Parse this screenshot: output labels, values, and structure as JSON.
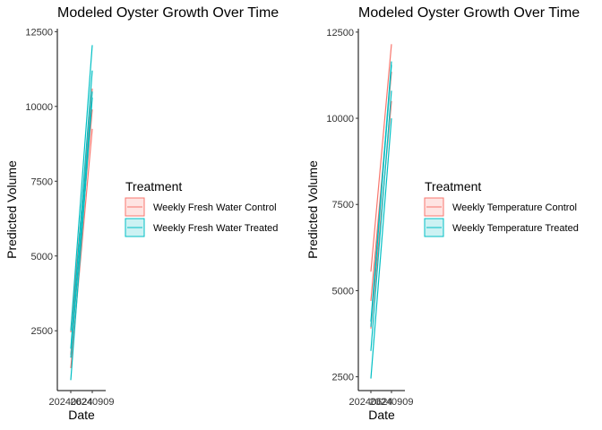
{
  "chart_data": [
    {
      "type": "line",
      "title": "Modeled Oyster Growth Over Time",
      "xlabel": "Date",
      "ylabel": "Predicted Volume",
      "x_tick_labels": [
        "20240624",
        "20240909"
      ],
      "y_ticks": [
        2500,
        5000,
        7500,
        10000,
        12500
      ],
      "ylim": [
        500,
        12600
      ],
      "grid": false,
      "legend": {
        "title": "Treatment",
        "placement": "right",
        "entries": [
          {
            "label": "Weekly Fresh Water Control",
            "color": "#F8766D"
          },
          {
            "label": "Weekly Fresh Water Treated",
            "color": "#00BFC4"
          }
        ]
      },
      "series": [
        {
          "group": 0,
          "values": [
            2450,
            10600
          ]
        },
        {
          "group": 0,
          "values": [
            1700,
            9900
          ]
        },
        {
          "group": 0,
          "values": [
            1250,
            9250
          ]
        },
        {
          "group": 1,
          "values": [
            2500,
            12050
          ]
        },
        {
          "group": 1,
          "values": [
            1900,
            11200
          ]
        },
        {
          "group": 1,
          "values": [
            1600,
            10500
          ]
        },
        {
          "group": 1,
          "values": [
            850,
            10300
          ]
        }
      ]
    },
    {
      "type": "line",
      "title": "Modeled Oyster Growth Over Time",
      "xlabel": "Date",
      "ylabel": "Predicted Volume",
      "x_tick_labels": [
        "20240624",
        "20240909"
      ],
      "y_ticks": [
        2500,
        5000,
        7500,
        10000,
        12500
      ],
      "ylim": [
        2100,
        12600
      ],
      "grid": false,
      "legend": {
        "title": "Treatment",
        "placement": "right",
        "entries": [
          {
            "label": "Weekly Temperature Control",
            "color": "#F8766D"
          },
          {
            "label": "Weekly Temperature Treated",
            "color": "#00BFC4"
          }
        ]
      },
      "series": [
        {
          "group": 0,
          "values": [
            5550,
            12150
          ]
        },
        {
          "group": 0,
          "values": [
            4700,
            11350
          ]
        },
        {
          "group": 0,
          "values": [
            3900,
            10500
          ]
        },
        {
          "group": 1,
          "values": [
            4100,
            11650
          ]
        },
        {
          "group": 1,
          "values": [
            3950,
            11550
          ]
        },
        {
          "group": 1,
          "values": [
            3250,
            10800
          ]
        },
        {
          "group": 1,
          "values": [
            2450,
            10000
          ]
        }
      ]
    }
  ]
}
